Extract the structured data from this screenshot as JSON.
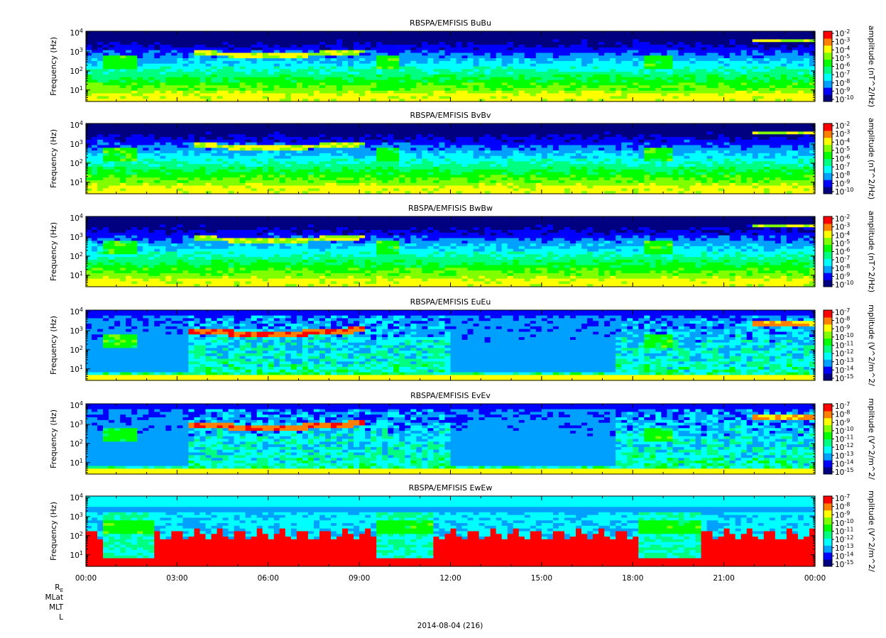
{
  "chart_data": {
    "type": "heatmap",
    "panels": [
      {
        "title": "RBSPA/EMFISIS  BuBu",
        "ylabel": "Frequency (Hz)",
        "y_ticks": [
          "10^4",
          "10^3",
          "10^2",
          "10^1"
        ],
        "ylim_hz": [
          2.5,
          12000
        ],
        "yscale": "log",
        "colorbar_label": "amplitude (nT^2/Hz)",
        "colorbar_ticks": [
          "10^-2",
          "10^-3",
          "10^-4",
          "10^-5",
          "10^-6",
          "10^-7",
          "10^-8",
          "10^-9",
          "10^-10"
        ],
        "colorbar_range_log10": [
          -10,
          -2
        ]
      },
      {
        "title": "RBSPA/EMFISIS  BvBv",
        "ylabel": "Frequency (Hz)",
        "y_ticks": [
          "10^4",
          "10^3",
          "10^2",
          "10^1"
        ],
        "ylim_hz": [
          2.5,
          12000
        ],
        "yscale": "log",
        "colorbar_label": "amplitude (nT^2/Hz)",
        "colorbar_ticks": [
          "10^-2",
          "10^-3",
          "10^-4",
          "10^-5",
          "10^-6",
          "10^-7",
          "10^-8",
          "10^-9",
          "10^-10"
        ],
        "colorbar_range_log10": [
          -10,
          -2
        ]
      },
      {
        "title": "RBSPA/EMFISIS  BwBw",
        "ylabel": "Frequency (Hz)",
        "y_ticks": [
          "10^4",
          "10^3",
          "10^2",
          "10^1"
        ],
        "ylim_hz": [
          2.5,
          12000
        ],
        "yscale": "log",
        "colorbar_label": "amplitude (nT^2/Hz)",
        "colorbar_ticks": [
          "10^-2",
          "10^-3",
          "10^-4",
          "10^-5",
          "10^-6",
          "10^-7",
          "10^-8",
          "10^-9",
          "10^-10"
        ],
        "colorbar_range_log10": [
          -10,
          -2
        ]
      },
      {
        "title": "RBSPA/EMFISIS  EuEu",
        "ylabel": "Frequency (Hz)",
        "y_ticks": [
          "10^4",
          "10^3",
          "10^2",
          "10^1"
        ],
        "ylim_hz": [
          2.5,
          12000
        ],
        "yscale": "log",
        "colorbar_label": "mplitude (V^2/m^2/",
        "colorbar_ticks": [
          "10^-7",
          "10^-8",
          "10^-9",
          "10^-10",
          "10^-11",
          "10^-12",
          "10^-13",
          "10^-14",
          "10^-15"
        ],
        "colorbar_range_log10": [
          -15,
          -7
        ]
      },
      {
        "title": "RBSPA/EMFISIS  EvEv",
        "ylabel": "Frequency (Hz)",
        "y_ticks": [
          "10^4",
          "10^3",
          "10^2",
          "10^1"
        ],
        "ylim_hz": [
          2.5,
          12000
        ],
        "yscale": "log",
        "colorbar_label": "mplitude (V^2/m^2/",
        "colorbar_ticks": [
          "10^-7",
          "10^-8",
          "10^-9",
          "10^-10",
          "10^-11",
          "10^-12",
          "10^-13",
          "10^-14",
          "10^-15"
        ],
        "colorbar_range_log10": [
          -15,
          -7
        ]
      },
      {
        "title": "RBSPA/EMFISIS  EwEw",
        "ylabel": "Frequency (Hz)",
        "y_ticks": [
          "10^4",
          "10^3",
          "10^2",
          "10^1"
        ],
        "ylim_hz": [
          2.5,
          12000
        ],
        "yscale": "log",
        "colorbar_label": "mplitude (V^2/m^2/",
        "colorbar_ticks": [
          "10^-7",
          "10^-8",
          "10^-9",
          "10^-10",
          "10^-11",
          "10^-12",
          "10^-13",
          "10^-14",
          "10^-15"
        ],
        "colorbar_range_log10": [
          -15,
          -7
        ]
      }
    ],
    "x_ticks": [
      "00:00",
      "03:00",
      "06:00",
      "09:00",
      "12:00",
      "15:00",
      "18:00",
      "21:00",
      "00:00"
    ],
    "x_range_hours": [
      0,
      24
    ],
    "ephemeris_labels": [
      "R_E",
      "MLat",
      "MLT",
      "L"
    ],
    "date_label": "2014-08-04 (216)",
    "colormap": [
      "#000080",
      "#0000ff",
      "#00a0ff",
      "#00ffff",
      "#00ff80",
      "#00ff00",
      "#80ff00",
      "#ffff00",
      "#ff8000",
      "#ff0000"
    ]
  }
}
